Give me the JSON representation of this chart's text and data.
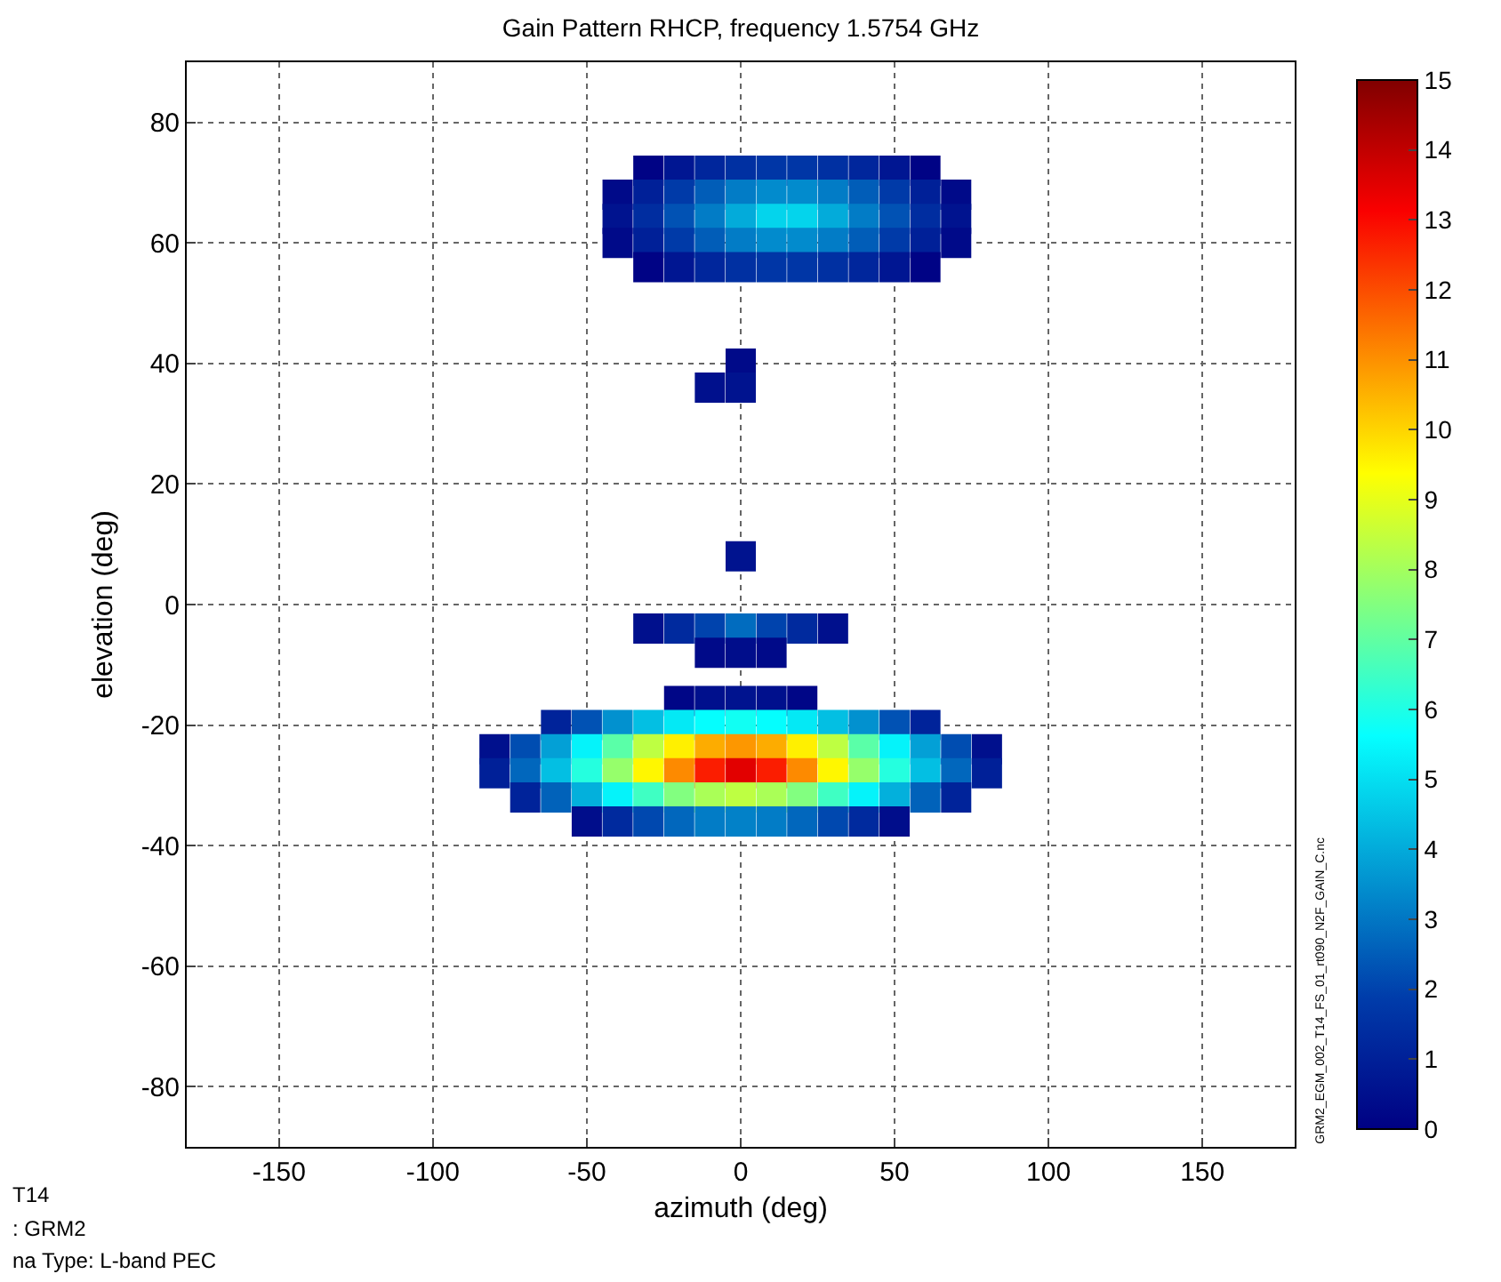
{
  "chart_data": {
    "type": "scatter",
    "title": "Gain Pattern RHCP, frequency 1.5754 GHz",
    "xlabel": "azimuth (deg)",
    "ylabel": "elevation (deg)",
    "x": [
      -30,
      -20,
      -10,
      0,
      10,
      20,
      30,
      40,
      50,
      60,
      -40,
      -30,
      -20,
      -10,
      0,
      10,
      20,
      30,
      40,
      50,
      60,
      70,
      -40,
      -30,
      -20,
      -10,
      0,
      10,
      20,
      30,
      40,
      50,
      60,
      70,
      -40,
      -30,
      -20,
      -10,
      0,
      10,
      20,
      30,
      40,
      50,
      60,
      70,
      -30,
      -20,
      -10,
      0,
      10,
      20,
      30,
      40,
      50,
      60,
      0,
      -10,
      0,
      0,
      -30,
      -20,
      -10,
      0,
      10,
      20,
      30,
      -10,
      0,
      10,
      -20,
      -10,
      0,
      10,
      20,
      -60,
      -50,
      -40,
      -30,
      -20,
      -10,
      0,
      10,
      20,
      30,
      40,
      50,
      60,
      -80,
      -70,
      -60,
      -50,
      -40,
      -30,
      -20,
      -10,
      0,
      10,
      20,
      30,
      40,
      50,
      60,
      70,
      80,
      -80,
      -70,
      -60,
      -50,
      -40,
      -30,
      -20,
      -10,
      0,
      10,
      20,
      30,
      40,
      50,
      60,
      70,
      80,
      -70,
      -60,
      -50,
      -40,
      -30,
      -20,
      -10,
      0,
      10,
      20,
      30,
      40,
      50,
      60,
      70,
      -50,
      -40,
      -30,
      -20,
      -10,
      0,
      10,
      20,
      30,
      40,
      50
    ],
    "values": [
      72,
      72,
      72,
      72,
      72,
      72,
      72,
      72,
      72,
      72,
      68,
      68,
      68,
      68,
      68,
      68,
      68,
      68,
      68,
      68,
      68,
      68,
      64,
      64,
      64,
      64,
      64,
      64,
      64,
      64,
      64,
      64,
      64,
      64,
      60,
      60,
      60,
      60,
      60,
      60,
      60,
      60,
      60,
      60,
      60,
      60,
      56,
      56,
      56,
      56,
      56,
      56,
      56,
      56,
      56,
      56,
      40,
      36,
      36,
      8,
      -4,
      -4,
      -4,
      -4,
      -4,
      -4,
      -4,
      -8,
      -8,
      -8,
      -16,
      -16,
      -16,
      -16,
      -16,
      -20,
      -20,
      -20,
      -20,
      -20,
      -20,
      -20,
      -20,
      -20,
      -20,
      -20,
      -20,
      -20,
      -24,
      -24,
      -24,
      -24,
      -24,
      -24,
      -24,
      -24,
      -24,
      -24,
      -24,
      -24,
      -24,
      -24,
      -24,
      -24,
      -24,
      -28,
      -28,
      -28,
      -28,
      -28,
      -28,
      -28,
      -28,
      -28,
      -28,
      -28,
      -28,
      -28,
      -28,
      -28,
      -28,
      -28,
      -32,
      -32,
      -32,
      -32,
      -32,
      -32,
      -32,
      -32,
      -32,
      -32,
      -32,
      -32,
      -32,
      -32,
      -32,
      -36,
      -36,
      -36,
      -36,
      -36,
      -36,
      -36,
      -36,
      -36,
      -36,
      -36
    ],
    "cvalues": [
      0.1,
      0.7,
      1.2,
      1.5,
      1.7,
      1.7,
      1.5,
      1.2,
      0.7,
      0.1,
      0.3,
      1.0,
      1.8,
      2.5,
      3.1,
      3.4,
      3.4,
      3.1,
      2.5,
      1.8,
      1.0,
      0.3,
      0.6,
      1.4,
      2.3,
      3.1,
      4.0,
      4.8,
      4.8,
      4.0,
      3.1,
      2.3,
      1.4,
      0.6,
      0.3,
      1.0,
      1.8,
      2.5,
      3.1,
      3.4,
      3.4,
      3.1,
      2.5,
      1.8,
      1.0,
      0.3,
      0.1,
      0.7,
      1.2,
      1.5,
      1.7,
      1.7,
      1.5,
      1.2,
      0.7,
      0.1,
      0.3,
      0.5,
      0.6,
      0.6,
      0.5,
      1.3,
      2.0,
      2.8,
      2.0,
      1.3,
      0.5,
      0.3,
      0.4,
      0.3,
      0.2,
      0.5,
      0.6,
      0.5,
      0.2,
      1.1,
      2.3,
      3.5,
      4.4,
      5.2,
      5.6,
      5.8,
      5.6,
      5.2,
      4.4,
      3.5,
      2.3,
      1.1,
      0.5,
      2.2,
      3.8,
      5.4,
      6.9,
      8.4,
      9.6,
      10.6,
      10.9,
      10.6,
      9.6,
      8.4,
      6.9,
      5.4,
      3.8,
      2.2,
      0.5,
      1.0,
      2.7,
      4.4,
      6.1,
      7.8,
      9.5,
      11.1,
      12.7,
      13.5,
      12.7,
      11.1,
      9.5,
      7.8,
      6.1,
      4.4,
      2.7,
      1.0,
      1.1,
      2.6,
      4.1,
      5.4,
      6.5,
      7.5,
      8.1,
      8.4,
      8.1,
      7.5,
      6.5,
      5.4,
      4.1,
      2.6,
      1.1,
      0.4,
      1.3,
      2.1,
      2.7,
      3.1,
      3.2,
      3.1,
      2.7,
      2.1,
      1.3,
      0.4
    ],
    "marker": "square",
    "clim": [
      0,
      15
    ],
    "cticks": [
      0,
      1,
      2,
      3,
      4,
      5,
      6,
      7,
      8,
      9,
      10,
      11,
      12,
      13,
      14,
      15
    ],
    "xlim": [
      -180,
      180
    ],
    "xticks": [
      -150,
      -100,
      -50,
      0,
      50,
      100,
      150
    ],
    "ylim": [
      -90,
      90
    ],
    "yticks": [
      -80,
      -60,
      -40,
      -20,
      0,
      20,
      40,
      60,
      80
    ],
    "grid": true,
    "annotations": [
      "T14",
      ": GRM2",
      "na Type: L-band PEC",
      "GRM2_EGM_002_T14_FS_01_rt090_N2F_GAIN_C.nc"
    ]
  }
}
